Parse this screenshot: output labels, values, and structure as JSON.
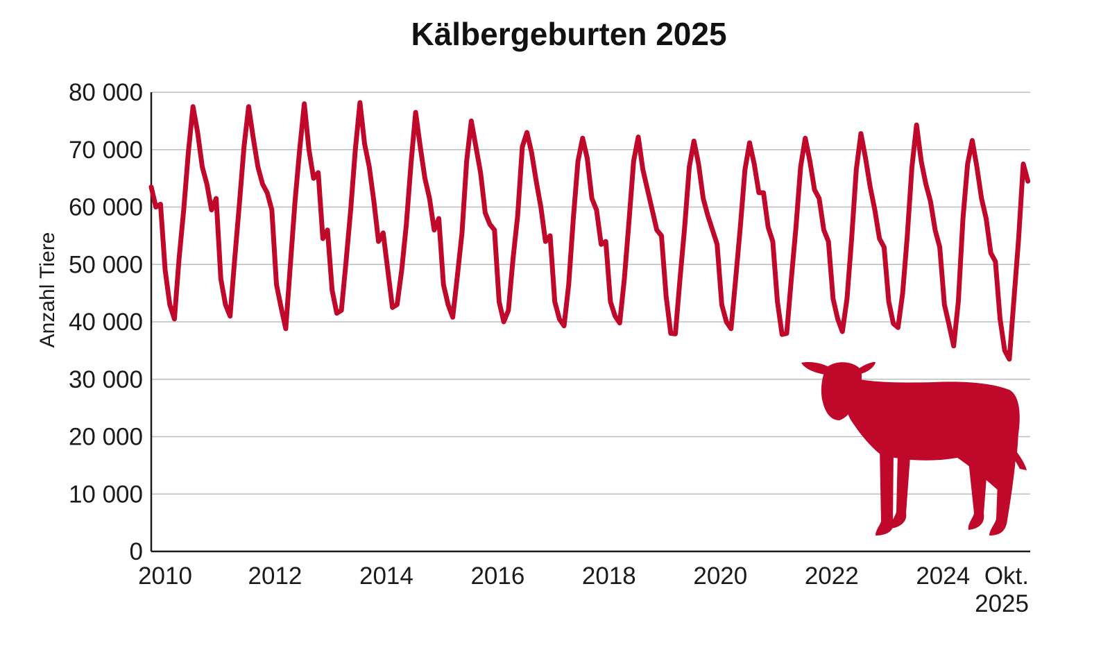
{
  "chart_data": {
    "type": "line",
    "title": "Kälbergeburten 2025",
    "ylabel": "Anzahl Tiere",
    "xlabel": "",
    "ylim": [
      0,
      80000
    ],
    "y_ticks": [
      0,
      10000,
      20000,
      30000,
      40000,
      50000,
      60000,
      70000,
      80000
    ],
    "y_tick_labels": [
      "0",
      "10 000",
      "20 000",
      "30 000",
      "40 000",
      "50 000",
      "60 000",
      "70 000",
      "80 000"
    ],
    "x_tick_labels": [
      "2010",
      "2012",
      "2014",
      "2016",
      "2018",
      "2020",
      "2022",
      "2024",
      "Okt.\n2025"
    ],
    "x_tick_positions": [
      0,
      24,
      48,
      72,
      96,
      120,
      144,
      168,
      189
    ],
    "x_unit": "months since Jan 2010",
    "grid": true,
    "line_color": "#c0082a",
    "icon": "calf-icon",
    "series": [
      {
        "name": "",
        "values": [
          63500,
          60000,
          60500,
          49000,
          43000,
          40500,
          51000,
          59500,
          69500,
          77500,
          73000,
          67000,
          64000,
          59500,
          61500,
          47500,
          43000,
          41000,
          51000,
          60500,
          70500,
          77500,
          72000,
          67000,
          64000,
          62500,
          59500,
          46500,
          42500,
          38800,
          50000,
          61000,
          70000,
          78000,
          70000,
          65000,
          66000,
          54500,
          56000,
          45500,
          41500,
          42000,
          50500,
          59500,
          70000,
          78200,
          71000,
          67000,
          61000,
          54000,
          55500,
          49000,
          42500,
          43000,
          49000,
          57000,
          67500,
          76500,
          70500,
          65000,
          61500,
          56000,
          58000,
          46500,
          43000,
          40800,
          48000,
          55500,
          68000,
          75000,
          70500,
          66000,
          59000,
          57000,
          56000,
          43500,
          40000,
          42000,
          51000,
          58500,
          70500,
          73000,
          69500,
          64500,
          60000,
          54000,
          55000,
          43500,
          40500,
          39300,
          46500,
          58000,
          68000,
          72000,
          68500,
          61500,
          59500,
          53500,
          54000,
          43500,
          41000,
          39800,
          47500,
          57500,
          68000,
          72200,
          66500,
          63000,
          59500,
          56000,
          55000,
          44500,
          38000,
          37900,
          47500,
          56500,
          67000,
          71500,
          67500,
          61500,
          58500,
          56000,
          53500,
          43000,
          40000,
          38800,
          47500,
          56500,
          66500,
          71200,
          67500,
          62500,
          62500,
          56500,
          54000,
          43500,
          37800,
          38000,
          47500,
          56500,
          67000,
          72000,
          68000,
          63000,
          61500,
          56000,
          54000,
          44000,
          40500,
          38300,
          44000,
          54500,
          66500,
          72800,
          68500,
          63500,
          59500,
          54500,
          53000,
          43500,
          39700,
          39000,
          45000,
          55000,
          67000,
          74300,
          68000,
          64000,
          61000,
          56000,
          53000,
          43000,
          39500,
          35800,
          43500,
          58000,
          67500,
          71600,
          67000,
          61500,
          58000,
          52000,
          50500,
          40500,
          35000,
          33500,
          44000,
          54500,
          67500,
          64500
        ]
      }
    ]
  }
}
